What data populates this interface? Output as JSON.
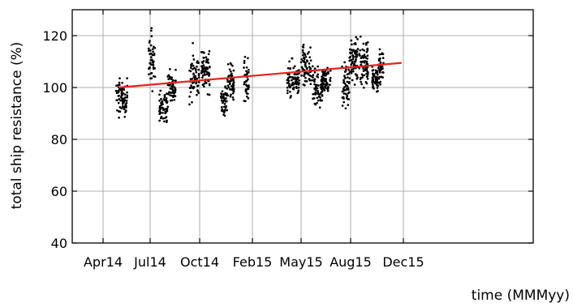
{
  "chart_data": {
    "type": "scatter",
    "title": "",
    "xlabel": "time (MMMyy)",
    "ylabel": "total ship resistance (%)",
    "x_ticks": [
      "Apr14",
      "Jul14",
      "Oct14",
      "Feb15",
      "May15",
      "Aug15",
      "Dec15"
    ],
    "y_ticks": [
      40,
      60,
      80,
      100,
      120
    ],
    "ylim": [
      40,
      130
    ],
    "xlim": [
      "2014-04-01",
      "2015-12-01"
    ],
    "grid": true,
    "legend": "none",
    "colors": {
      "points": "#000000",
      "trend": "#e8221e",
      "grid": "#999999"
    },
    "trend_line": {
      "x": [
        "2014-05-01",
        "2015-11-27"
      ],
      "y": [
        100,
        109.5
      ]
    },
    "clusters": [
      {
        "x_range": [
          "2014-04-26",
          "2014-05-18"
        ],
        "y_center": 96,
        "y_spread": 6
      },
      {
        "x_range": [
          "2014-06-28",
          "2014-07-10"
        ],
        "y_center": 110,
        "y_spread": 10
      },
      {
        "x_range": [
          "2014-07-18",
          "2014-08-02"
        ],
        "y_center": 93,
        "y_spread": 5
      },
      {
        "x_range": [
          "2014-08-02",
          "2014-08-18"
        ],
        "y_center": 100,
        "y_spread": 6
      },
      {
        "x_range": [
          "2014-09-12",
          "2014-09-30"
        ],
        "y_center": 104,
        "y_spread": 9
      },
      {
        "x_range": [
          "2014-10-05",
          "2014-10-25"
        ],
        "y_center": 107,
        "y_spread": 7
      },
      {
        "x_range": [
          "2014-11-20",
          "2014-12-04"
        ],
        "y_center": 95,
        "y_spread": 5
      },
      {
        "x_range": [
          "2014-12-05",
          "2014-12-20"
        ],
        "y_center": 102,
        "y_spread": 6
      },
      {
        "x_range": [
          "2015-01-12",
          "2015-01-24"
        ],
        "y_center": 101,
        "y_spread": 8
      },
      {
        "x_range": [
          "2015-04-05",
          "2015-04-28"
        ],
        "y_center": 103,
        "y_spread": 6
      },
      {
        "x_range": [
          "2015-05-01",
          "2015-05-20"
        ],
        "y_center": 108,
        "y_spread": 7
      },
      {
        "x_range": [
          "2015-05-22",
          "2015-06-10"
        ],
        "y_center": 100,
        "y_spread": 6
      },
      {
        "x_range": [
          "2015-06-10",
          "2015-06-25"
        ],
        "y_center": 103,
        "y_spread": 4
      },
      {
        "x_range": [
          "2015-07-16",
          "2015-07-30"
        ],
        "y_center": 101,
        "y_spread": 7
      },
      {
        "x_range": [
          "2015-07-30",
          "2015-08-18"
        ],
        "y_center": 111,
        "y_spread": 9
      },
      {
        "x_range": [
          "2015-08-20",
          "2015-09-10"
        ],
        "y_center": 110,
        "y_spread": 9
      },
      {
        "x_range": [
          "2015-09-20",
          "2015-10-04"
        ],
        "y_center": 103,
        "y_spread": 4
      },
      {
        "x_range": [
          "2015-10-04",
          "2015-10-16"
        ],
        "y_center": 108,
        "y_spread": 7
      }
    ]
  }
}
